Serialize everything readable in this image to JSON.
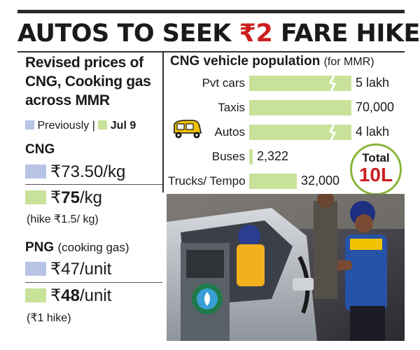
{
  "headline": {
    "prefix": "AUTOS TO SEEK ",
    "rupee": "₹",
    "amount": "2",
    "suffix": " FARE HIKE?"
  },
  "left_panel": {
    "title_lines": [
      "Revised prices of",
      "CNG, Cooking gas",
      "across MMR"
    ],
    "legend": {
      "previous": "Previously",
      "separator": "|",
      "current": "Jul 9"
    },
    "cng": {
      "heading": "CNG",
      "previous": "₹73.50/kg",
      "current_symbol": "₹",
      "current_num": "75",
      "current_unit": "/kg",
      "note": "(hike ₹1.5/ kg)"
    },
    "png": {
      "heading": "PNG",
      "heading_sub": "(cooking gas)",
      "previous": "₹47/unit",
      "current_symbol": "₹",
      "current_num": "48",
      "current_unit": "/unit",
      "note": "(₹1 hike)"
    }
  },
  "colors": {
    "previous": "#b8c4e6",
    "current": "#c9e29a",
    "accent": "#cc1f1f",
    "ring": "#8ab63e"
  },
  "chart_data": {
    "type": "bar",
    "orientation": "horizontal",
    "title": "CNG vehicle population",
    "subtitle": "(for MMR)",
    "categories": [
      "Pvt cars",
      "Taxis",
      "Autos",
      "Buses",
      "Trucks/ Tempo"
    ],
    "values": [
      500000,
      70000,
      400000,
      2322,
      32000
    ],
    "value_labels": [
      "5 lakh",
      "70,000",
      "4 lakh",
      "2,322",
      "32,000"
    ],
    "axis_breaks": [
      true,
      false,
      true,
      false,
      false
    ],
    "scale_note": "bars with axis breaks are truncated",
    "total": {
      "label": "Total",
      "num": "10",
      "unit": "L"
    },
    "icons": [
      "auto-rickshaw-icon"
    ]
  }
}
